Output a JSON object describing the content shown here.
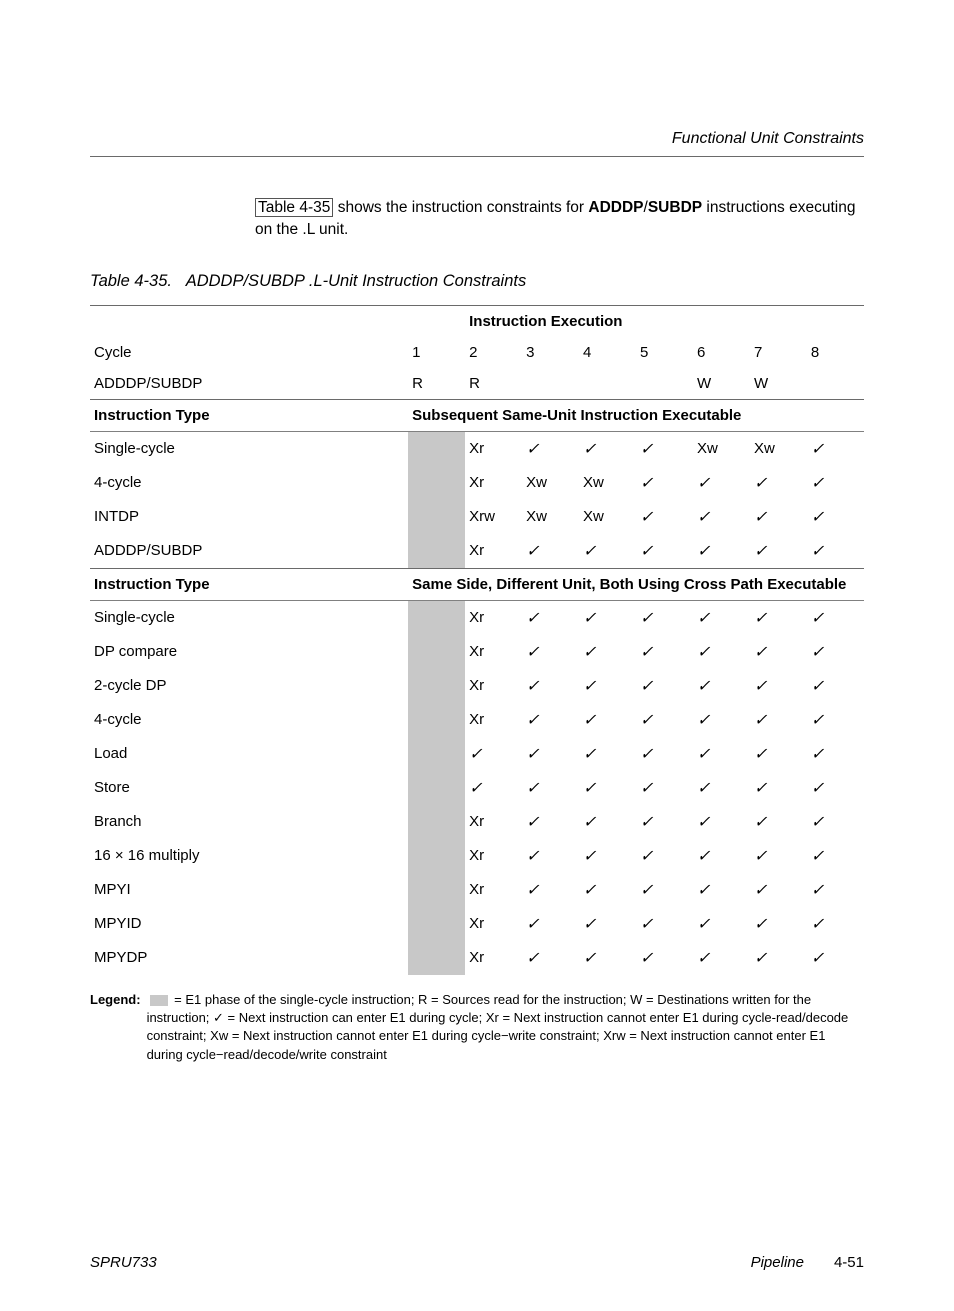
{
  "header": {
    "section_title": "Functional Unit Constraints"
  },
  "intro": {
    "link_text": "Table 4-35",
    "pre": " shows the instruction constraints for ",
    "b1": "ADDDP",
    "slash": "/",
    "b2": "SUBDP",
    "post": " instructions executing on the .L unit."
  },
  "caption": {
    "num": "Table 4-35.",
    "title": "ADDDP/SUBDP .L-Unit Instruction Constraints"
  },
  "cycles": [
    "1",
    "2",
    "3",
    "4",
    "5",
    "6",
    "7",
    "8"
  ],
  "head1": {
    "left": "",
    "right": "Instruction Execution"
  },
  "row_cycle_label": "Cycle",
  "row_instr": {
    "label": "ADDDP/SUBDP",
    "cells": [
      "R",
      "R",
      "",
      "",
      "",
      "W",
      "W",
      ""
    ]
  },
  "section_a": {
    "left": "Instruction Type",
    "right": "Subsequent Same-Unit Instruction Executable"
  },
  "rows_a": [
    {
      "label": "Single-cycle",
      "cells": [
        "",
        "Xr",
        "✓",
        "✓",
        "✓",
        "Xw",
        "Xw",
        "✓"
      ]
    },
    {
      "label": "4-cycle",
      "cells": [
        "",
        "Xr",
        "Xw",
        "Xw",
        "✓",
        "✓",
        "✓",
        "✓"
      ]
    },
    {
      "label": "INTDP",
      "cells": [
        "",
        "Xrw",
        "Xw",
        "Xw",
        "✓",
        "✓",
        "✓",
        "✓"
      ]
    },
    {
      "label": "ADDDP/SUBDP",
      "cells": [
        "",
        "Xr",
        "✓",
        "✓",
        "✓",
        "✓",
        "✓",
        "✓"
      ]
    }
  ],
  "section_b": {
    "left": "Instruction Type",
    "right": "Same Side, Different Unit, Both Using Cross Path Executable"
  },
  "rows_b": [
    {
      "label": "Single-cycle",
      "cells": [
        "",
        "Xr",
        "✓",
        "✓",
        "✓",
        "✓",
        "✓",
        "✓"
      ]
    },
    {
      "label": "DP compare",
      "cells": [
        "",
        "Xr",
        "✓",
        "✓",
        "✓",
        "✓",
        "✓",
        "✓"
      ]
    },
    {
      "label": "2-cycle DP",
      "cells": [
        "",
        "Xr",
        "✓",
        "✓",
        "✓",
        "✓",
        "✓",
        "✓"
      ]
    },
    {
      "label": "4-cycle",
      "cells": [
        "",
        "Xr",
        "✓",
        "✓",
        "✓",
        "✓",
        "✓",
        "✓"
      ]
    },
    {
      "label": "Load",
      "cells": [
        "",
        "✓",
        "✓",
        "✓",
        "✓",
        "✓",
        "✓",
        "✓"
      ]
    },
    {
      "label": "Store",
      "cells": [
        "",
        "✓",
        "✓",
        "✓",
        "✓",
        "✓",
        "✓",
        "✓"
      ]
    },
    {
      "label": "Branch",
      "cells": [
        "",
        "Xr",
        "✓",
        "✓",
        "✓",
        "✓",
        "✓",
        "✓"
      ]
    },
    {
      "label": "16 × 16 multiply",
      "cells": [
        "",
        "Xr",
        "✓",
        "✓",
        "✓",
        "✓",
        "✓",
        "✓"
      ]
    },
    {
      "label": "MPYI",
      "cells": [
        "",
        "Xr",
        "✓",
        "✓",
        "✓",
        "✓",
        "✓",
        "✓"
      ]
    },
    {
      "label": "MPYID",
      "cells": [
        "",
        "Xr",
        "✓",
        "✓",
        "✓",
        "✓",
        "✓",
        "✓"
      ]
    },
    {
      "label": "MPYDP",
      "cells": [
        "",
        "Xr",
        "✓",
        "✓",
        "✓",
        "✓",
        "✓",
        "✓"
      ]
    }
  ],
  "legend": {
    "label": "Legend:",
    "text": " = E1 phase of the single-cycle instruction; R = Sources read for the instruction; W = Destinations written for the instruction; ✓ = Next instruction can enter E1 during cycle; Xr = Next instruction cannot enter E1 during cycle-read/decode constraint; Xw = Next instruction cannot enter E1 during cycle−write constraint; Xrw = Next instruction cannot enter E1 during cycle−read/decode/write constraint"
  },
  "footer": {
    "left": "SPRU733",
    "right_label": "Pipeline",
    "page": "4-51"
  },
  "style": {
    "shaded_color": "#c8c8c8",
    "rule_color": "#6a6a6a",
    "font_family": "Arial, Helvetica, sans-serif"
  }
}
